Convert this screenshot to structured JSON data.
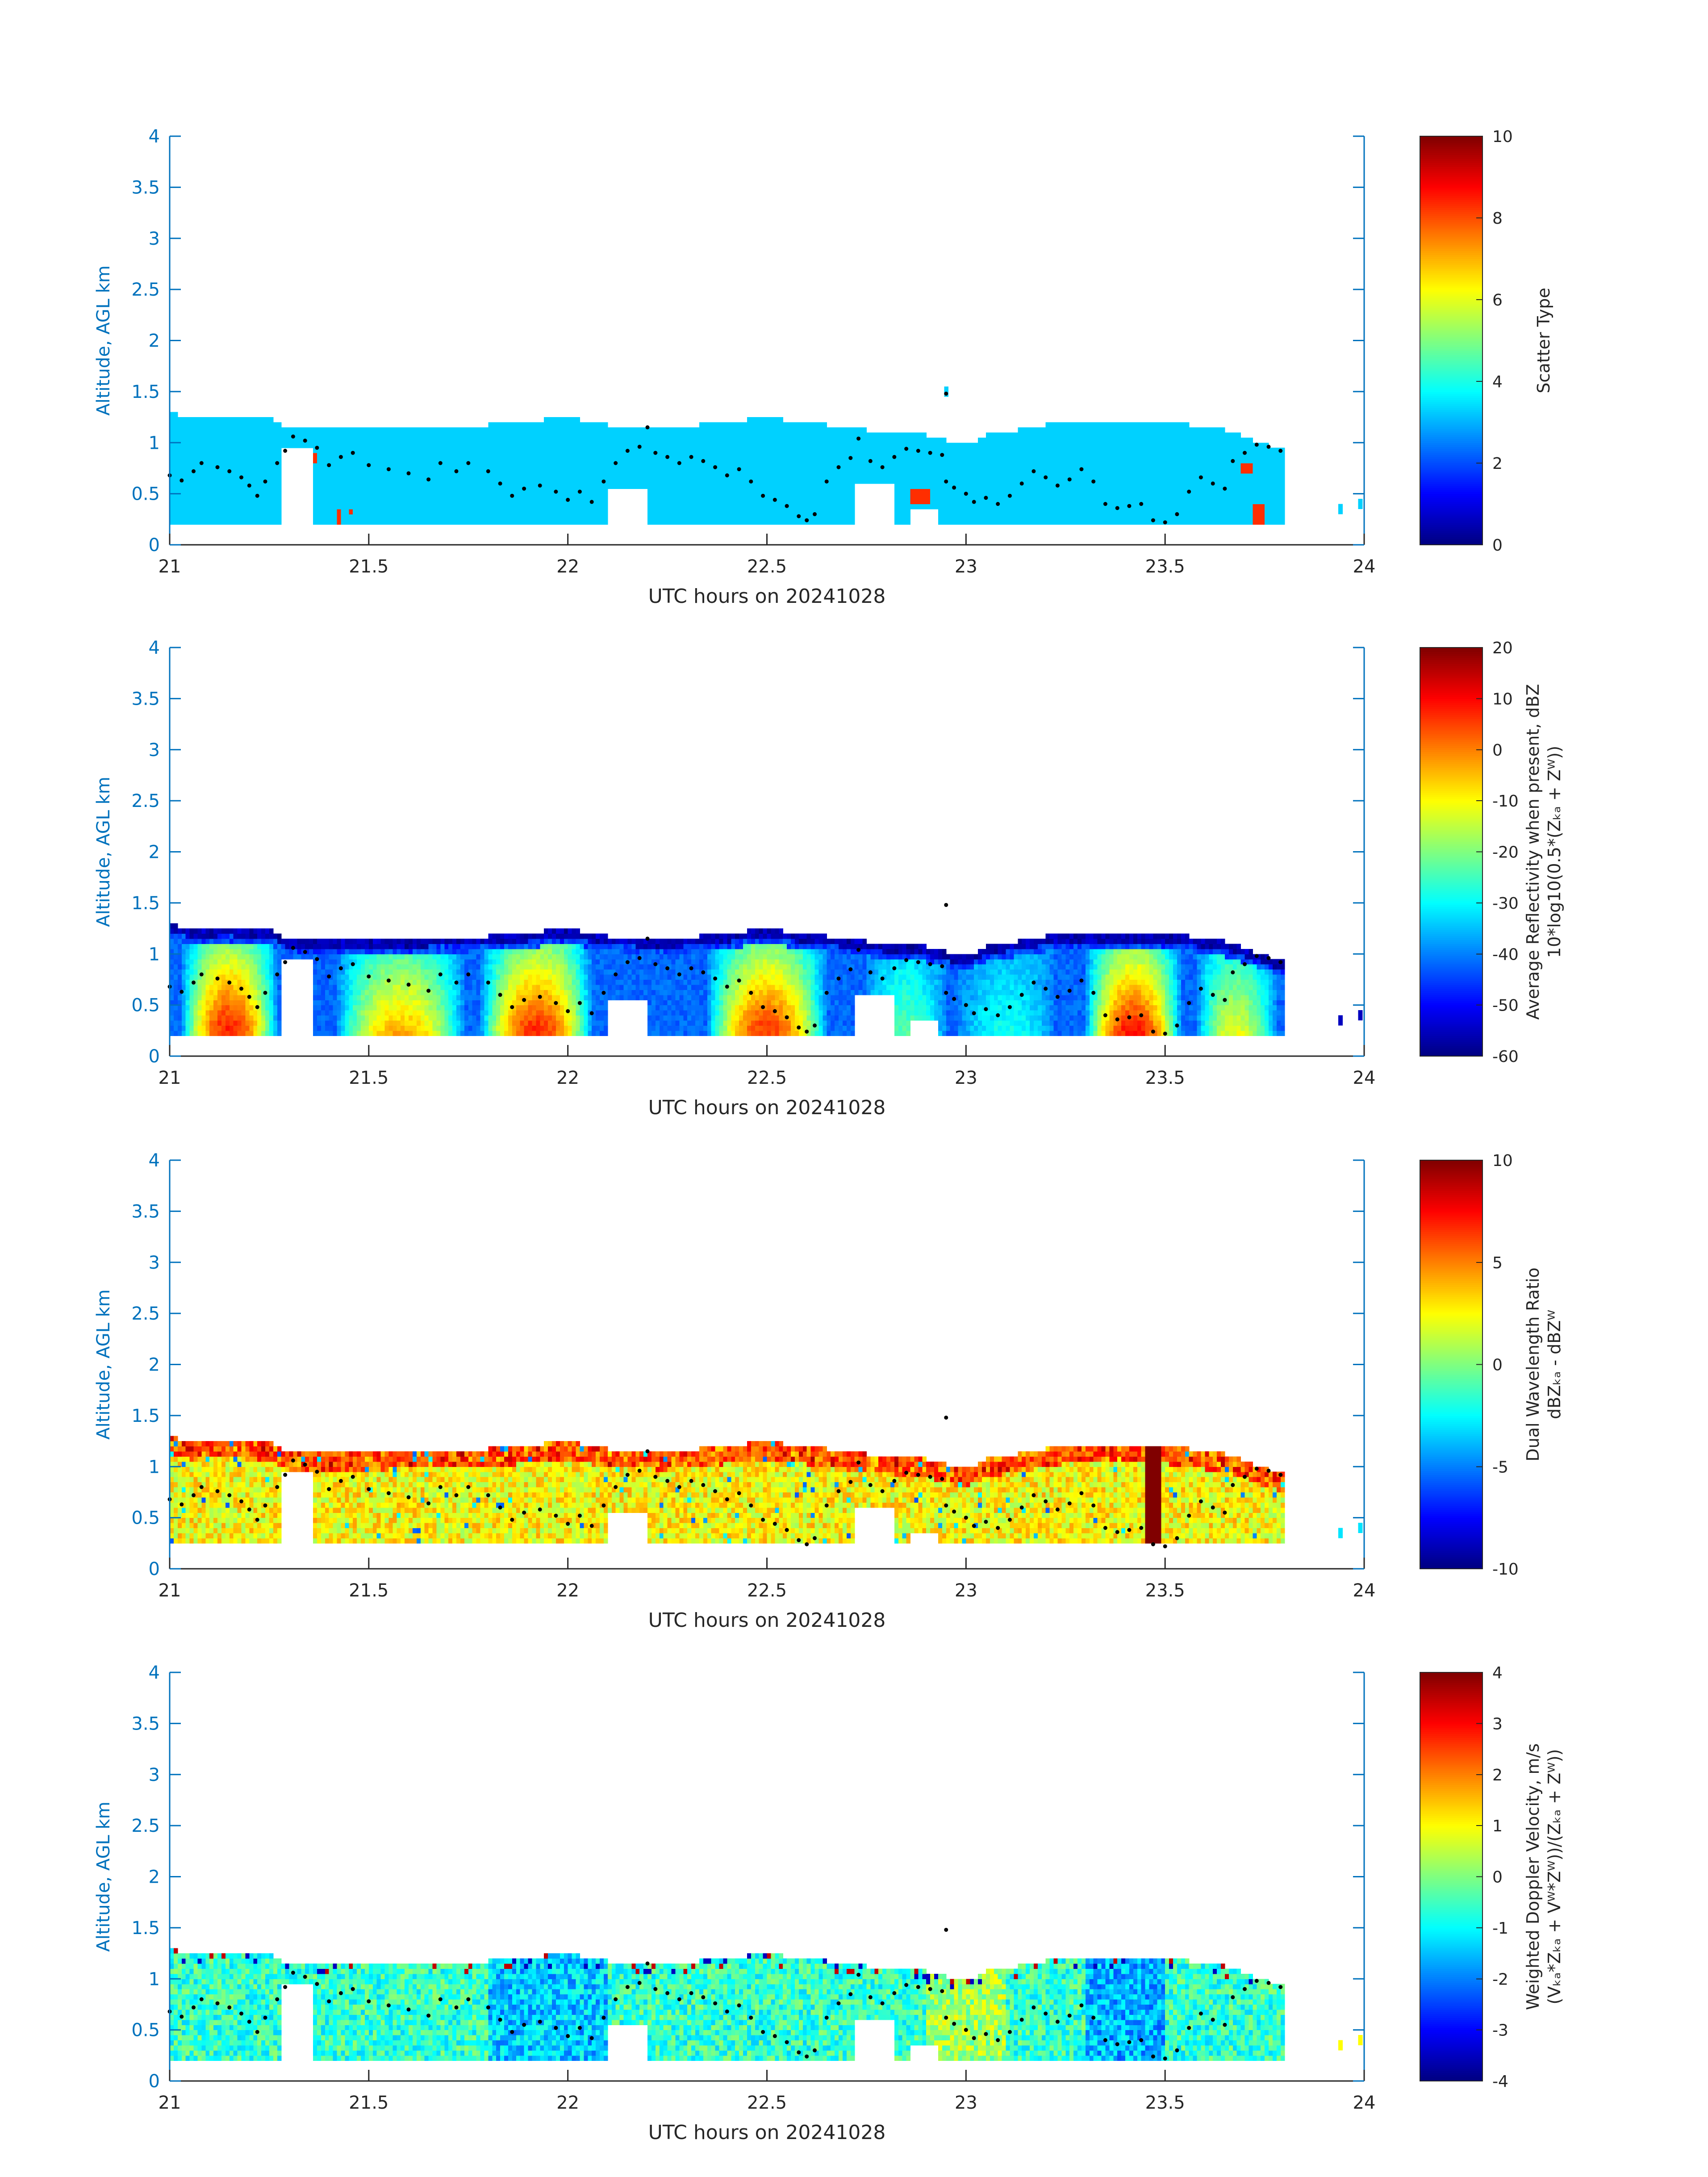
{
  "figure": {
    "background": "#ffffff"
  },
  "chart_data": [
    {
      "type": "heatmap",
      "field": "scatter_type",
      "xlabel": "UTC hours on 20241028",
      "ylabel": "Altitude, AGL km",
      "xlim": [
        21,
        24
      ],
      "ylim": [
        0,
        4
      ],
      "xticks": [
        "21",
        "21.5",
        "22",
        "22.5",
        "23",
        "23.5",
        "24"
      ],
      "yticks": [
        "0",
        "0.5",
        "1",
        "1.5",
        "2",
        "2.5",
        "3",
        "3.5",
        "4"
      ],
      "colorbar": {
        "label_lines": [
          "Scatter Type"
        ],
        "clim": [
          0,
          10
        ],
        "ticks": [
          "0",
          "2",
          "4",
          "6",
          "8",
          "10"
        ],
        "colormap": "jet"
      },
      "cloud_base_km": 0.2,
      "dominant_value": 3.3,
      "secondary_value": 8.3,
      "secondary_patches": [
        {
          "t0": 21.36,
          "t1": 21.37,
          "z0": 0.8,
          "z1": 0.9
        },
        {
          "t0": 21.42,
          "t1": 21.43,
          "z0": 0.2,
          "z1": 0.35
        },
        {
          "t0": 21.45,
          "t1": 21.46,
          "z0": 0.3,
          "z1": 0.35
        },
        {
          "t0": 22.11,
          "t1": 22.12,
          "z0": 0.2,
          "z1": 0.3
        },
        {
          "t0": 22.86,
          "t1": 22.91,
          "z0": 0.4,
          "z1": 0.55
        },
        {
          "t0": 23.69,
          "t1": 23.72,
          "z0": 0.7,
          "z1": 0.8
        },
        {
          "t0": 23.72,
          "t1": 23.75,
          "z0": 0.2,
          "z1": 0.4
        },
        {
          "t0": 23.94,
          "t1": 23.95,
          "z0": 0.3,
          "z1": 0.4
        },
        {
          "t0": 23.97,
          "t1": 23.98,
          "z0": 0.35,
          "z1": 0.45
        }
      ]
    },
    {
      "type": "heatmap",
      "field": "average_reflectivity",
      "xlabel": "UTC hours on 20241028",
      "ylabel": "Altitude, AGL km",
      "xlim": [
        21,
        24
      ],
      "ylim": [
        0,
        4
      ],
      "xticks": [
        "21",
        "21.5",
        "22",
        "22.5",
        "23",
        "23.5",
        "24"
      ],
      "yticks": [
        "0",
        "0.5",
        "1",
        "1.5",
        "2",
        "2.5",
        "3",
        "3.5",
        "4"
      ],
      "colorbar": {
        "label_lines": [
          "Average Reflectivity when present, dBZ",
          "10*log10(0.5*(Zₖₐ + Zᵂ))"
        ],
        "clim": [
          -60,
          20
        ],
        "ticks": [
          "-60",
          "-50",
          "-40",
          "-30",
          "-20",
          "-10",
          "0",
          "10",
          "20"
        ],
        "colormap": "jet"
      },
      "cloud_base_km": 0.2,
      "cores_dBZ": [
        {
          "t": 21.15,
          "w": 0.12,
          "peak": 7
        },
        {
          "t": 21.58,
          "w": 0.16,
          "peak": -3
        },
        {
          "t": 21.92,
          "w": 0.14,
          "peak": 7
        },
        {
          "t": 22.5,
          "w": 0.15,
          "peak": 5
        },
        {
          "t": 22.85,
          "w": 0.1,
          "peak": -22
        },
        {
          "t": 23.1,
          "w": 0.12,
          "peak": -28
        },
        {
          "t": 23.42,
          "w": 0.12,
          "peak": 9
        },
        {
          "t": 23.68,
          "w": 0.1,
          "peak": -10
        }
      ]
    },
    {
      "type": "heatmap",
      "field": "dual_wavelength_ratio",
      "xlabel": "UTC hours on 20241028",
      "ylabel": "Altitude, AGL km",
      "xlim": [
        21,
        24
      ],
      "ylim": [
        0,
        4
      ],
      "xticks": [
        "21",
        "21.5",
        "22",
        "22.5",
        "23",
        "23.5",
        "24"
      ],
      "yticks": [
        "0",
        "0.5",
        "1",
        "1.5",
        "2",
        "2.5",
        "3",
        "3.5",
        "4"
      ],
      "colorbar": {
        "label_lines": [
          "Dual Wavelength Ratio",
          "dBZₖₐ - dBZᵂ"
        ],
        "clim": [
          -10,
          10
        ],
        "ticks": [
          "-10",
          "-5",
          "0",
          "5",
          "10"
        ],
        "colormap": "jet"
      },
      "cloud_base_km": 0.25,
      "typical_dB": 2.5,
      "strong_column": {
        "t0": 23.45,
        "t1": 23.49,
        "value_dB": 10
      }
    },
    {
      "type": "heatmap",
      "field": "weighted_doppler_velocity",
      "xlabel": "UTC hours on 20241028",
      "ylabel": "Altitude, AGL km",
      "xlim": [
        21,
        24
      ],
      "ylim": [
        0,
        4
      ],
      "xticks": [
        "21",
        "21.5",
        "22",
        "22.5",
        "23",
        "23.5",
        "24"
      ],
      "yticks": [
        "0",
        "0.5",
        "1",
        "1.5",
        "2",
        "2.5",
        "3",
        "3.5",
        "4"
      ],
      "colorbar": {
        "label_lines": [
          "Weighted Doppler Velocity, m/s",
          "(Vₖₐ*Zₖₐ + Vᵂ*Zᵂ))/(Zₖₐ + Zᵂ))"
        ],
        "clim": [
          -4,
          4
        ],
        "ticks": [
          "-4",
          "-3",
          "-2",
          "-1",
          "0",
          "1",
          "2",
          "3",
          "4"
        ],
        "colormap": "jet"
      },
      "cloud_base_km": 0.2,
      "typical_ms": -0.6
    }
  ],
  "cloud_top_km": [
    {
      "t": 21.0,
      "z": 1.28
    },
    {
      "t": 21.05,
      "z": 1.22
    },
    {
      "t": 21.15,
      "z": 1.24
    },
    {
      "t": 21.26,
      "z": 1.2
    },
    {
      "t": 21.3,
      "z": 1.12
    },
    {
      "t": 21.5,
      "z": 1.12
    },
    {
      "t": 21.8,
      "z": 1.15
    },
    {
      "t": 22.0,
      "z": 1.22
    },
    {
      "t": 22.1,
      "z": 1.15
    },
    {
      "t": 22.25,
      "z": 1.12
    },
    {
      "t": 22.5,
      "z": 1.22
    },
    {
      "t": 22.65,
      "z": 1.15
    },
    {
      "t": 22.75,
      "z": 1.1
    },
    {
      "t": 22.9,
      "z": 1.05
    },
    {
      "t": 23.0,
      "z": 0.95
    },
    {
      "t": 23.05,
      "z": 1.05
    },
    {
      "t": 23.25,
      "z": 1.18
    },
    {
      "t": 23.5,
      "z": 1.18
    },
    {
      "t": 23.65,
      "z": 1.1
    },
    {
      "t": 23.8,
      "z": 0.9
    }
  ],
  "gaps": [
    {
      "t0": 21.28,
      "t1": 21.36,
      "z_top": 0.95
    },
    {
      "t0": 22.1,
      "t1": 22.2,
      "z_top": 0.55
    },
    {
      "t0": 22.72,
      "t1": 22.82,
      "z_top": 0.6
    },
    {
      "t0": 22.86,
      "t1": 22.93,
      "z_top": 0.35
    },
    {
      "t0": 23.8,
      "t1": 23.93,
      "z_top": 4
    },
    {
      "t0": 23.96,
      "t1": 24,
      "z_top": 4
    }
  ],
  "isolated_echoes": [
    {
      "t": 22.95,
      "z": 1.5
    },
    {
      "t": 23.94,
      "z": 0.35
    },
    {
      "t": 23.99,
      "z": 0.4
    }
  ],
  "dot_trace": [
    {
      "t": 21.0,
      "z": 0.68
    },
    {
      "t": 21.03,
      "z": 0.63
    },
    {
      "t": 21.06,
      "z": 0.72
    },
    {
      "t": 21.08,
      "z": 0.8
    },
    {
      "t": 21.12,
      "z": 0.76
    },
    {
      "t": 21.15,
      "z": 0.72
    },
    {
      "t": 21.18,
      "z": 0.66
    },
    {
      "t": 21.2,
      "z": 0.58
    },
    {
      "t": 21.22,
      "z": 0.48
    },
    {
      "t": 21.24,
      "z": 0.62
    },
    {
      "t": 21.27,
      "z": 0.8
    },
    {
      "t": 21.29,
      "z": 0.92
    },
    {
      "t": 21.31,
      "z": 1.06
    },
    {
      "t": 21.34,
      "z": 1.02
    },
    {
      "t": 21.37,
      "z": 0.95
    },
    {
      "t": 21.4,
      "z": 0.78
    },
    {
      "t": 21.43,
      "z": 0.86
    },
    {
      "t": 21.46,
      "z": 0.9
    },
    {
      "t": 21.5,
      "z": 0.78
    },
    {
      "t": 21.55,
      "z": 0.74
    },
    {
      "t": 21.6,
      "z": 0.7
    },
    {
      "t": 21.65,
      "z": 0.64
    },
    {
      "t": 21.68,
      "z": 0.8
    },
    {
      "t": 21.72,
      "z": 0.72
    },
    {
      "t": 21.75,
      "z": 0.8
    },
    {
      "t": 21.8,
      "z": 0.72
    },
    {
      "t": 21.83,
      "z": 0.6
    },
    {
      "t": 21.86,
      "z": 0.48
    },
    {
      "t": 21.89,
      "z": 0.55
    },
    {
      "t": 21.93,
      "z": 0.58
    },
    {
      "t": 21.97,
      "z": 0.52
    },
    {
      "t": 22.0,
      "z": 0.44
    },
    {
      "t": 22.03,
      "z": 0.52
    },
    {
      "t": 22.06,
      "z": 0.42
    },
    {
      "t": 22.09,
      "z": 0.62
    },
    {
      "t": 22.12,
      "z": 0.8
    },
    {
      "t": 22.15,
      "z": 0.92
    },
    {
      "t": 22.18,
      "z": 0.96
    },
    {
      "t": 22.2,
      "z": 1.15
    },
    {
      "t": 22.22,
      "z": 0.9
    },
    {
      "t": 22.25,
      "z": 0.86
    },
    {
      "t": 22.28,
      "z": 0.8
    },
    {
      "t": 22.31,
      "z": 0.86
    },
    {
      "t": 22.34,
      "z": 0.82
    },
    {
      "t": 22.37,
      "z": 0.76
    },
    {
      "t": 22.4,
      "z": 0.68
    },
    {
      "t": 22.43,
      "z": 0.74
    },
    {
      "t": 22.46,
      "z": 0.62
    },
    {
      "t": 22.49,
      "z": 0.48
    },
    {
      "t": 22.52,
      "z": 0.44
    },
    {
      "t": 22.55,
      "z": 0.38
    },
    {
      "t": 22.58,
      "z": 0.28
    },
    {
      "t": 22.6,
      "z": 0.24
    },
    {
      "t": 22.62,
      "z": 0.3
    },
    {
      "t": 22.65,
      "z": 0.62
    },
    {
      "t": 22.68,
      "z": 0.76
    },
    {
      "t": 22.71,
      "z": 0.85
    },
    {
      "t": 22.73,
      "z": 1.04
    },
    {
      "t": 22.76,
      "z": 0.82
    },
    {
      "t": 22.79,
      "z": 0.76
    },
    {
      "t": 22.82,
      "z": 0.86
    },
    {
      "t": 22.85,
      "z": 0.94
    },
    {
      "t": 22.88,
      "z": 0.92
    },
    {
      "t": 22.91,
      "z": 0.9
    },
    {
      "t": 22.94,
      "z": 0.88
    },
    {
      "t": 22.95,
      "z": 0.62
    },
    {
      "t": 22.97,
      "z": 0.56
    },
    {
      "t": 23.0,
      "z": 0.5
    },
    {
      "t": 23.02,
      "z": 0.42
    },
    {
      "t": 23.05,
      "z": 0.46
    },
    {
      "t": 23.08,
      "z": 0.4
    },
    {
      "t": 23.11,
      "z": 0.48
    },
    {
      "t": 23.14,
      "z": 0.6
    },
    {
      "t": 23.17,
      "z": 0.72
    },
    {
      "t": 23.2,
      "z": 0.66
    },
    {
      "t": 23.23,
      "z": 0.58
    },
    {
      "t": 23.26,
      "z": 0.64
    },
    {
      "t": 23.29,
      "z": 0.74
    },
    {
      "t": 23.32,
      "z": 0.62
    },
    {
      "t": 23.35,
      "z": 0.4
    },
    {
      "t": 23.38,
      "z": 0.36
    },
    {
      "t": 23.41,
      "z": 0.38
    },
    {
      "t": 23.44,
      "z": 0.4
    },
    {
      "t": 23.47,
      "z": 0.24
    },
    {
      "t": 23.5,
      "z": 0.22
    },
    {
      "t": 23.53,
      "z": 0.3
    },
    {
      "t": 23.56,
      "z": 0.52
    },
    {
      "t": 23.59,
      "z": 0.66
    },
    {
      "t": 23.62,
      "z": 0.6
    },
    {
      "t": 23.65,
      "z": 0.55
    },
    {
      "t": 23.67,
      "z": 0.82
    },
    {
      "t": 23.7,
      "z": 0.9
    },
    {
      "t": 23.73,
      "z": 0.98
    },
    {
      "t": 23.76,
      "z": 0.96
    },
    {
      "t": 23.79,
      "z": 0.92
    }
  ]
}
